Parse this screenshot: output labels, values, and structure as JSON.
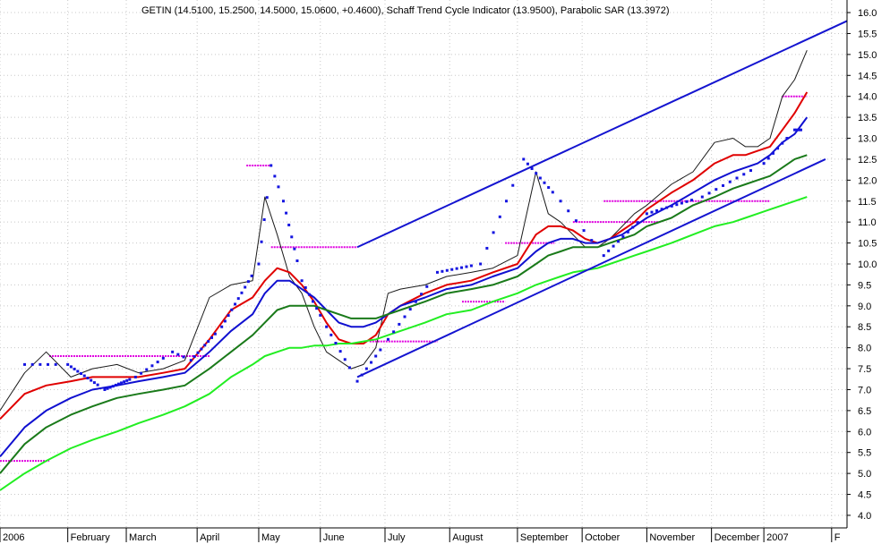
{
  "chart_data": {
    "type": "line",
    "title": "GETIN (14.5100, 15.2500, 14.5000, 15.0600, +0.4600), Schaff Trend Cycle Indicator (13.9500), Parabolic SAR (13.3972)",
    "ylim": [
      3.7,
      16.3
    ],
    "y_ticks": [
      "4.0",
      "4.5",
      "5.0",
      "5.5",
      "6.0",
      "6.5",
      "7.0",
      "7.5",
      "8.0",
      "8.5",
      "9.0",
      "9.5",
      "10.0",
      "10.5",
      "11.0",
      "11.5",
      "12.0",
      "12.5",
      "13.0",
      "13.5",
      "14.0",
      "14.5",
      "15.0",
      "15.5",
      "16.0"
    ],
    "x_ticks": [
      {
        "label": "2006",
        "pos": 0
      },
      {
        "label": "February",
        "pos": 22
      },
      {
        "label": "March",
        "pos": 41
      },
      {
        "label": "April",
        "pos": 64
      },
      {
        "label": "May",
        "pos": 84
      },
      {
        "label": "June",
        "pos": 104
      },
      {
        "label": "July",
        "pos": 125
      },
      {
        "label": "August",
        "pos": 146
      },
      {
        "label": "September",
        "pos": 168
      },
      {
        "label": "October",
        "pos": 189
      },
      {
        "label": "November",
        "pos": 210
      },
      {
        "label": "December",
        "pos": 231
      },
      {
        "label": "2007",
        "pos": 248
      },
      {
        "label": "F",
        "pos": 270
      }
    ],
    "series": [
      {
        "key": "close",
        "color": "#1a1a1a",
        "x": [
          0,
          8,
          15,
          23,
          30,
          38,
          45,
          53,
          60,
          68,
          75,
          82,
          86,
          90,
          94,
          98,
          102,
          106,
          110,
          114,
          118,
          122,
          126,
          130,
          138,
          145,
          153,
          160,
          168,
          174,
          178,
          182,
          186,
          190,
          194,
          198,
          202,
          206,
          210,
          218,
          225,
          232,
          238,
          242,
          246,
          250,
          254,
          258,
          262
        ],
        "values": [
          6.5,
          7.4,
          7.9,
          7.3,
          7.5,
          7.6,
          7.4,
          7.5,
          7.7,
          9.2,
          9.5,
          9.6,
          11.6,
          10.7,
          9.7,
          9.3,
          8.5,
          7.9,
          7.7,
          7.5,
          7.6,
          8.0,
          9.3,
          9.4,
          9.5,
          9.7,
          9.8,
          9.9,
          10.2,
          12.2,
          11.2,
          11.0,
          10.7,
          10.4,
          10.4,
          10.6,
          10.9,
          11.2,
          11.4,
          11.9,
          12.2,
          12.9,
          13.0,
          12.8,
          12.8,
          13.0,
          14.0,
          14.4,
          15.1
        ]
      },
      {
        "key": "ema-short",
        "color": "#e00000",
        "x": [
          0,
          8,
          15,
          23,
          30,
          38,
          45,
          53,
          60,
          68,
          75,
          82,
          86,
          90,
          94,
          98,
          102,
          106,
          110,
          114,
          118,
          122,
          126,
          130,
          138,
          145,
          153,
          160,
          168,
          174,
          178,
          182,
          186,
          190,
          194,
          198,
          202,
          206,
          210,
          218,
          225,
          232,
          238,
          242,
          246,
          250,
          254,
          258,
          262
        ],
        "values": [
          6.3,
          6.9,
          7.1,
          7.2,
          7.3,
          7.3,
          7.3,
          7.4,
          7.5,
          8.2,
          8.9,
          9.2,
          9.6,
          9.9,
          9.8,
          9.5,
          9.1,
          8.6,
          8.2,
          8.1,
          8.1,
          8.3,
          8.8,
          9.0,
          9.3,
          9.5,
          9.6,
          9.8,
          10.0,
          10.7,
          10.9,
          10.9,
          10.8,
          10.6,
          10.5,
          10.6,
          10.8,
          11.0,
          11.3,
          11.7,
          12.0,
          12.4,
          12.6,
          12.6,
          12.7,
          12.8,
          13.2,
          13.6,
          14.1
        ]
      },
      {
        "key": "ema-medium",
        "color": "#1010d0",
        "x": [
          0,
          8,
          15,
          23,
          30,
          38,
          45,
          53,
          60,
          68,
          75,
          82,
          86,
          90,
          94,
          98,
          102,
          106,
          110,
          114,
          118,
          122,
          126,
          130,
          138,
          145,
          153,
          160,
          168,
          174,
          178,
          182,
          186,
          190,
          194,
          198,
          202,
          206,
          210,
          218,
          225,
          232,
          238,
          242,
          246,
          250,
          254,
          258,
          262
        ],
        "values": [
          5.4,
          6.1,
          6.5,
          6.8,
          7.0,
          7.1,
          7.2,
          7.3,
          7.4,
          7.9,
          8.4,
          8.8,
          9.3,
          9.6,
          9.6,
          9.4,
          9.2,
          8.9,
          8.6,
          8.5,
          8.5,
          8.6,
          8.8,
          9.0,
          9.2,
          9.4,
          9.5,
          9.7,
          9.9,
          10.3,
          10.5,
          10.6,
          10.6,
          10.5,
          10.5,
          10.6,
          10.7,
          10.9,
          11.1,
          11.4,
          11.7,
          12.0,
          12.2,
          12.3,
          12.4,
          12.6,
          12.9,
          13.1,
          13.5
        ]
      },
      {
        "key": "ema-long",
        "color": "#1a7a1a",
        "x": [
          0,
          8,
          15,
          23,
          30,
          38,
          45,
          53,
          60,
          68,
          75,
          82,
          86,
          90,
          94,
          98,
          102,
          106,
          110,
          114,
          118,
          122,
          126,
          130,
          138,
          145,
          153,
          160,
          168,
          174,
          178,
          182,
          186,
          190,
          194,
          198,
          202,
          206,
          210,
          218,
          225,
          232,
          238,
          242,
          246,
          250,
          254,
          258,
          262
        ],
        "values": [
          5.0,
          5.7,
          6.1,
          6.4,
          6.6,
          6.8,
          6.9,
          7.0,
          7.1,
          7.5,
          7.9,
          8.3,
          8.6,
          8.9,
          9.0,
          9.0,
          9.0,
          8.9,
          8.8,
          8.7,
          8.7,
          8.7,
          8.8,
          8.9,
          9.1,
          9.3,
          9.4,
          9.5,
          9.7,
          10.0,
          10.2,
          10.3,
          10.4,
          10.4,
          10.4,
          10.5,
          10.6,
          10.7,
          10.9,
          11.1,
          11.4,
          11.6,
          11.8,
          11.9,
          12.0,
          12.1,
          12.3,
          12.5,
          12.6
        ]
      },
      {
        "key": "ema-slow",
        "color": "#22ee22",
        "x": [
          0,
          8,
          15,
          23,
          30,
          38,
          45,
          53,
          60,
          68,
          75,
          82,
          86,
          90,
          94,
          98,
          102,
          106,
          110,
          114,
          118,
          122,
          126,
          130,
          138,
          145,
          153,
          160,
          168,
          174,
          178,
          182,
          186,
          190,
          194,
          198,
          202,
          206,
          210,
          218,
          225,
          232,
          238,
          242,
          246,
          250,
          254,
          258,
          262
        ],
        "values": [
          4.6,
          5.0,
          5.3,
          5.6,
          5.8,
          6.0,
          6.2,
          6.4,
          6.6,
          6.9,
          7.3,
          7.6,
          7.8,
          7.9,
          8.0,
          8.0,
          8.05,
          8.05,
          8.1,
          8.1,
          8.15,
          8.2,
          8.3,
          8.4,
          8.6,
          8.8,
          8.9,
          9.1,
          9.3,
          9.5,
          9.6,
          9.7,
          9.8,
          9.85,
          9.9,
          10.0,
          10.1,
          10.2,
          10.3,
          10.5,
          10.7,
          10.9,
          11.0,
          11.1,
          11.2,
          11.3,
          11.4,
          11.5,
          11.6
        ]
      }
    ],
    "sar_points": [
      {
        "x": 8,
        "y": 7.6,
        "n": 5
      },
      {
        "x": 22,
        "y": 7.6,
        "n": 10
      },
      {
        "x": 34,
        "y": 7.0,
        "n": 10
      },
      {
        "x": 44,
        "y": 7.3,
        "n": 6
      },
      {
        "x": 56,
        "y": 7.9,
        "n": 3
      },
      {
        "x": 62,
        "y": 7.7,
        "n": 8
      },
      {
        "x": 72,
        "y": 8.5,
        "n": 10
      },
      {
        "x": 84,
        "y": 10.0,
        "n": 4
      },
      {
        "x": 88,
        "y": 12.35,
        "n": 3
      },
      {
        "x": 92,
        "y": 11.5,
        "n": 6
      },
      {
        "x": 98,
        "y": 9.6,
        "n": 6
      },
      {
        "x": 106,
        "y": 8.5,
        "n": 6
      },
      {
        "x": 116,
        "y": 7.2,
        "n": 6
      },
      {
        "x": 126,
        "y": 8.2,
        "n": 8
      },
      {
        "x": 142,
        "y": 9.8,
        "n": 8
      },
      {
        "x": 156,
        "y": 10.0,
        "n": 6
      },
      {
        "x": 170,
        "y": 12.5,
        "n": 8
      },
      {
        "x": 182,
        "y": 11.5,
        "n": 5
      },
      {
        "x": 196,
        "y": 10.2,
        "n": 8
      },
      {
        "x": 210,
        "y": 11.2,
        "n": 10
      },
      {
        "x": 228,
        "y": 11.6,
        "n": 8
      },
      {
        "x": 248,
        "y": 12.4,
        "n": 6
      },
      {
        "x": 258,
        "y": 13.2,
        "n": 4
      }
    ],
    "stc_levels": [
      {
        "x1": 0,
        "x2": 16,
        "y": 5.3
      },
      {
        "x1": 16,
        "x2": 68,
        "y": 7.8
      },
      {
        "x1": 80,
        "x2": 88,
        "y": 12.35
      },
      {
        "x1": 88,
        "x2": 116,
        "y": 10.4
      },
      {
        "x1": 120,
        "x2": 142,
        "y": 8.15
      },
      {
        "x1": 150,
        "x2": 164,
        "y": 9.1
      },
      {
        "x1": 164,
        "x2": 180,
        "y": 10.5
      },
      {
        "x1": 186,
        "x2": 214,
        "y": 11.0
      },
      {
        "x1": 196,
        "x2": 250,
        "y": 11.5
      },
      {
        "x1": 254,
        "x2": 262,
        "y": 14.0
      }
    ],
    "trend_lines": [
      {
        "x1": 116,
        "y1": 10.4,
        "x2": 275,
        "y2": 15.8
      },
      {
        "x1": 116,
        "y1": 7.3,
        "x2": 268,
        "y2": 12.5
      }
    ]
  }
}
